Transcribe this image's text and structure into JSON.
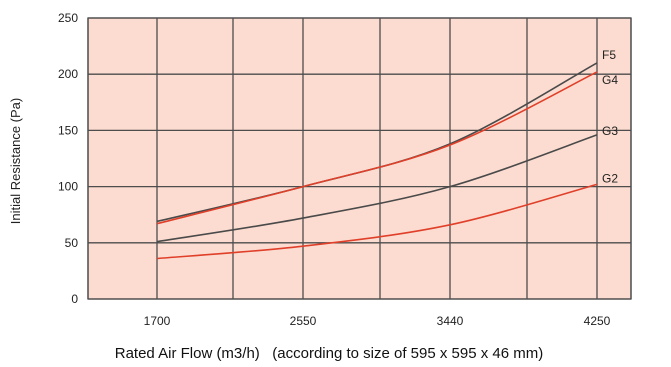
{
  "chart_data": {
    "type": "line",
    "title": "",
    "xlabel": "Rated Air Flow (m3/h)   (according to size of 595 x 595 x 46 mm)",
    "ylabel": "Initial Resistance (Pa)",
    "x_categories": [
      "1700",
      "2550",
      "3440",
      "4250"
    ],
    "ylim": [
      0,
      250
    ],
    "yticks": [
      "0",
      "50",
      "100",
      "150",
      "200",
      "250"
    ],
    "grid": true,
    "legend": "inline-right",
    "colors": {
      "background": "#fcdcd0",
      "grid": "#4d4d4d",
      "dark_line": "#4a4a4a",
      "red_line": "#e0402a"
    },
    "series": [
      {
        "name": "F5",
        "color": "#4a4a4a",
        "points": [
          [
            0,
            69
          ],
          [
            1,
            100
          ],
          [
            2,
            138
          ],
          [
            3,
            210
          ]
        ]
      },
      {
        "name": "G4",
        "color": "#e0402a",
        "points": [
          [
            0,
            67
          ],
          [
            1,
            100
          ],
          [
            2,
            137
          ],
          [
            3,
            202
          ]
        ]
      },
      {
        "name": "G3",
        "color": "#4a4a4a",
        "points": [
          [
            0,
            51
          ],
          [
            1,
            72
          ],
          [
            2,
            100
          ],
          [
            3,
            146
          ]
        ]
      },
      {
        "name": "G2",
        "color": "#e0402a",
        "points": [
          [
            0,
            36
          ],
          [
            1,
            47
          ],
          [
            2,
            66
          ],
          [
            3,
            102
          ]
        ]
      }
    ]
  }
}
